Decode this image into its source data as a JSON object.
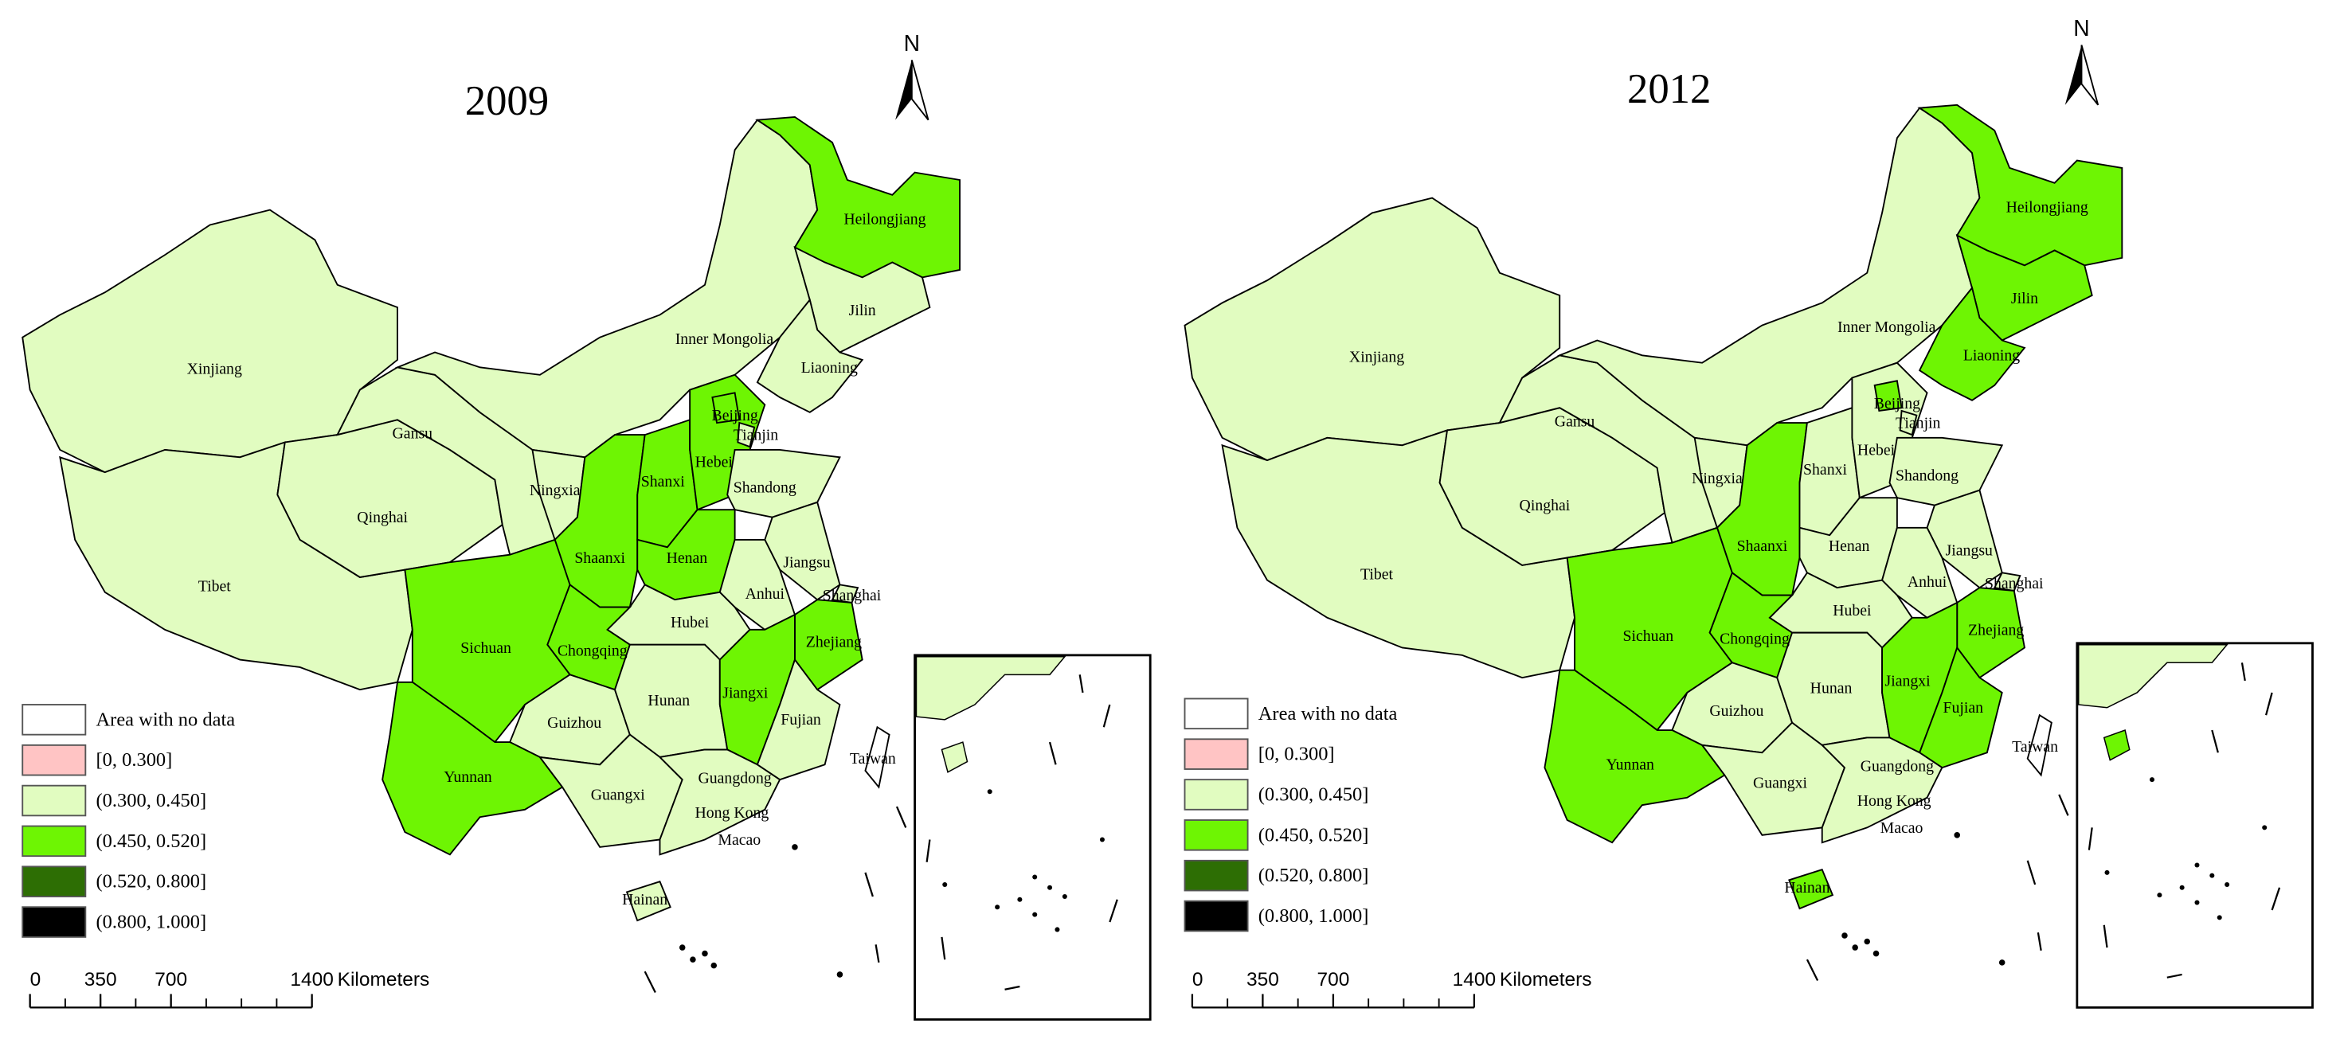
{
  "legend": {
    "items": [
      {
        "label": "Area with no data",
        "color": "#ffffff"
      },
      {
        "label": "[0, 0.300]",
        "color": "#ffc4c4"
      },
      {
        "label": "(0.300, 0.450]",
        "color": "#e1fcc0"
      },
      {
        "label": "(0.450, 0.520]",
        "color": "#6ef503"
      },
      {
        "label": "(0.520, 0.800]",
        "color": "#2d6e04"
      },
      {
        "label": "(0.800, 1.000]",
        "color": "#000000"
      }
    ]
  },
  "north": "N",
  "scale_bar": {
    "ticks": [
      0,
      350,
      700,
      1400
    ],
    "unit": "Kilometers"
  },
  "places": [
    "Hong Kong",
    "Macao"
  ],
  "maps": [
    {
      "title": "2009",
      "provinces": [
        {
          "name": "Xinjiang",
          "class": 2
        },
        {
          "name": "Tibet",
          "class": 2
        },
        {
          "name": "Qinghai",
          "class": 2
        },
        {
          "name": "Gansu",
          "class": 2
        },
        {
          "name": "Inner Mongolia",
          "class": 2
        },
        {
          "name": "Heilongjiang",
          "class": 3
        },
        {
          "name": "Jilin",
          "class": 2
        },
        {
          "name": "Liaoning",
          "class": 2
        },
        {
          "name": "Ningxia",
          "class": 2
        },
        {
          "name": "Shaanxi",
          "class": 3
        },
        {
          "name": "Shanxi",
          "class": 3
        },
        {
          "name": "Hebei",
          "class": 3
        },
        {
          "name": "Beijing",
          "class": 3
        },
        {
          "name": "Tianjin",
          "class": 2
        },
        {
          "name": "Shandong",
          "class": 2
        },
        {
          "name": "Henan",
          "class": 3
        },
        {
          "name": "Jiangsu",
          "class": 2
        },
        {
          "name": "Anhui",
          "class": 2
        },
        {
          "name": "Shanghai",
          "class": 2
        },
        {
          "name": "Zhejiang",
          "class": 3
        },
        {
          "name": "Hubei",
          "class": 2
        },
        {
          "name": "Chongqing",
          "class": 3
        },
        {
          "name": "Sichuan",
          "class": 3
        },
        {
          "name": "Guizhou",
          "class": 2
        },
        {
          "name": "Yunnan",
          "class": 3
        },
        {
          "name": "Hunan",
          "class": 2
        },
        {
          "name": "Jiangxi",
          "class": 3
        },
        {
          "name": "Fujian",
          "class": 2
        },
        {
          "name": "Guangxi",
          "class": 2
        },
        {
          "name": "Guangdong",
          "class": 2
        },
        {
          "name": "Hainan",
          "class": 2
        },
        {
          "name": "Taiwan",
          "class": 0
        }
      ]
    },
    {
      "title": "2012",
      "provinces": [
        {
          "name": "Xinjiang",
          "class": 2
        },
        {
          "name": "Tibet",
          "class": 2
        },
        {
          "name": "Qinghai",
          "class": 2
        },
        {
          "name": "Gansu",
          "class": 2
        },
        {
          "name": "Inner Mongolia",
          "class": 2
        },
        {
          "name": "Heilongjiang",
          "class": 3
        },
        {
          "name": "Jilin",
          "class": 3
        },
        {
          "name": "Liaoning",
          "class": 3
        },
        {
          "name": "Ningxia",
          "class": 2
        },
        {
          "name": "Shaanxi",
          "class": 3
        },
        {
          "name": "Shanxi",
          "class": 2
        },
        {
          "name": "Hebei",
          "class": 2
        },
        {
          "name": "Beijing",
          "class": 3
        },
        {
          "name": "Tianjin",
          "class": 2
        },
        {
          "name": "Shandong",
          "class": 2
        },
        {
          "name": "Henan",
          "class": 2
        },
        {
          "name": "Jiangsu",
          "class": 2
        },
        {
          "name": "Anhui",
          "class": 2
        },
        {
          "name": "Shanghai",
          "class": 2
        },
        {
          "name": "Zhejiang",
          "class": 3
        },
        {
          "name": "Hubei",
          "class": 2
        },
        {
          "name": "Chongqing",
          "class": 3
        },
        {
          "name": "Sichuan",
          "class": 3
        },
        {
          "name": "Guizhou",
          "class": 2
        },
        {
          "name": "Yunnan",
          "class": 3
        },
        {
          "name": "Hunan",
          "class": 2
        },
        {
          "name": "Jiangxi",
          "class": 3
        },
        {
          "name": "Fujian",
          "class": 3
        },
        {
          "name": "Guangxi",
          "class": 2
        },
        {
          "name": "Guangdong",
          "class": 2
        },
        {
          "name": "Hainan",
          "class": 3
        },
        {
          "name": "Taiwan",
          "class": 0
        }
      ]
    }
  ]
}
